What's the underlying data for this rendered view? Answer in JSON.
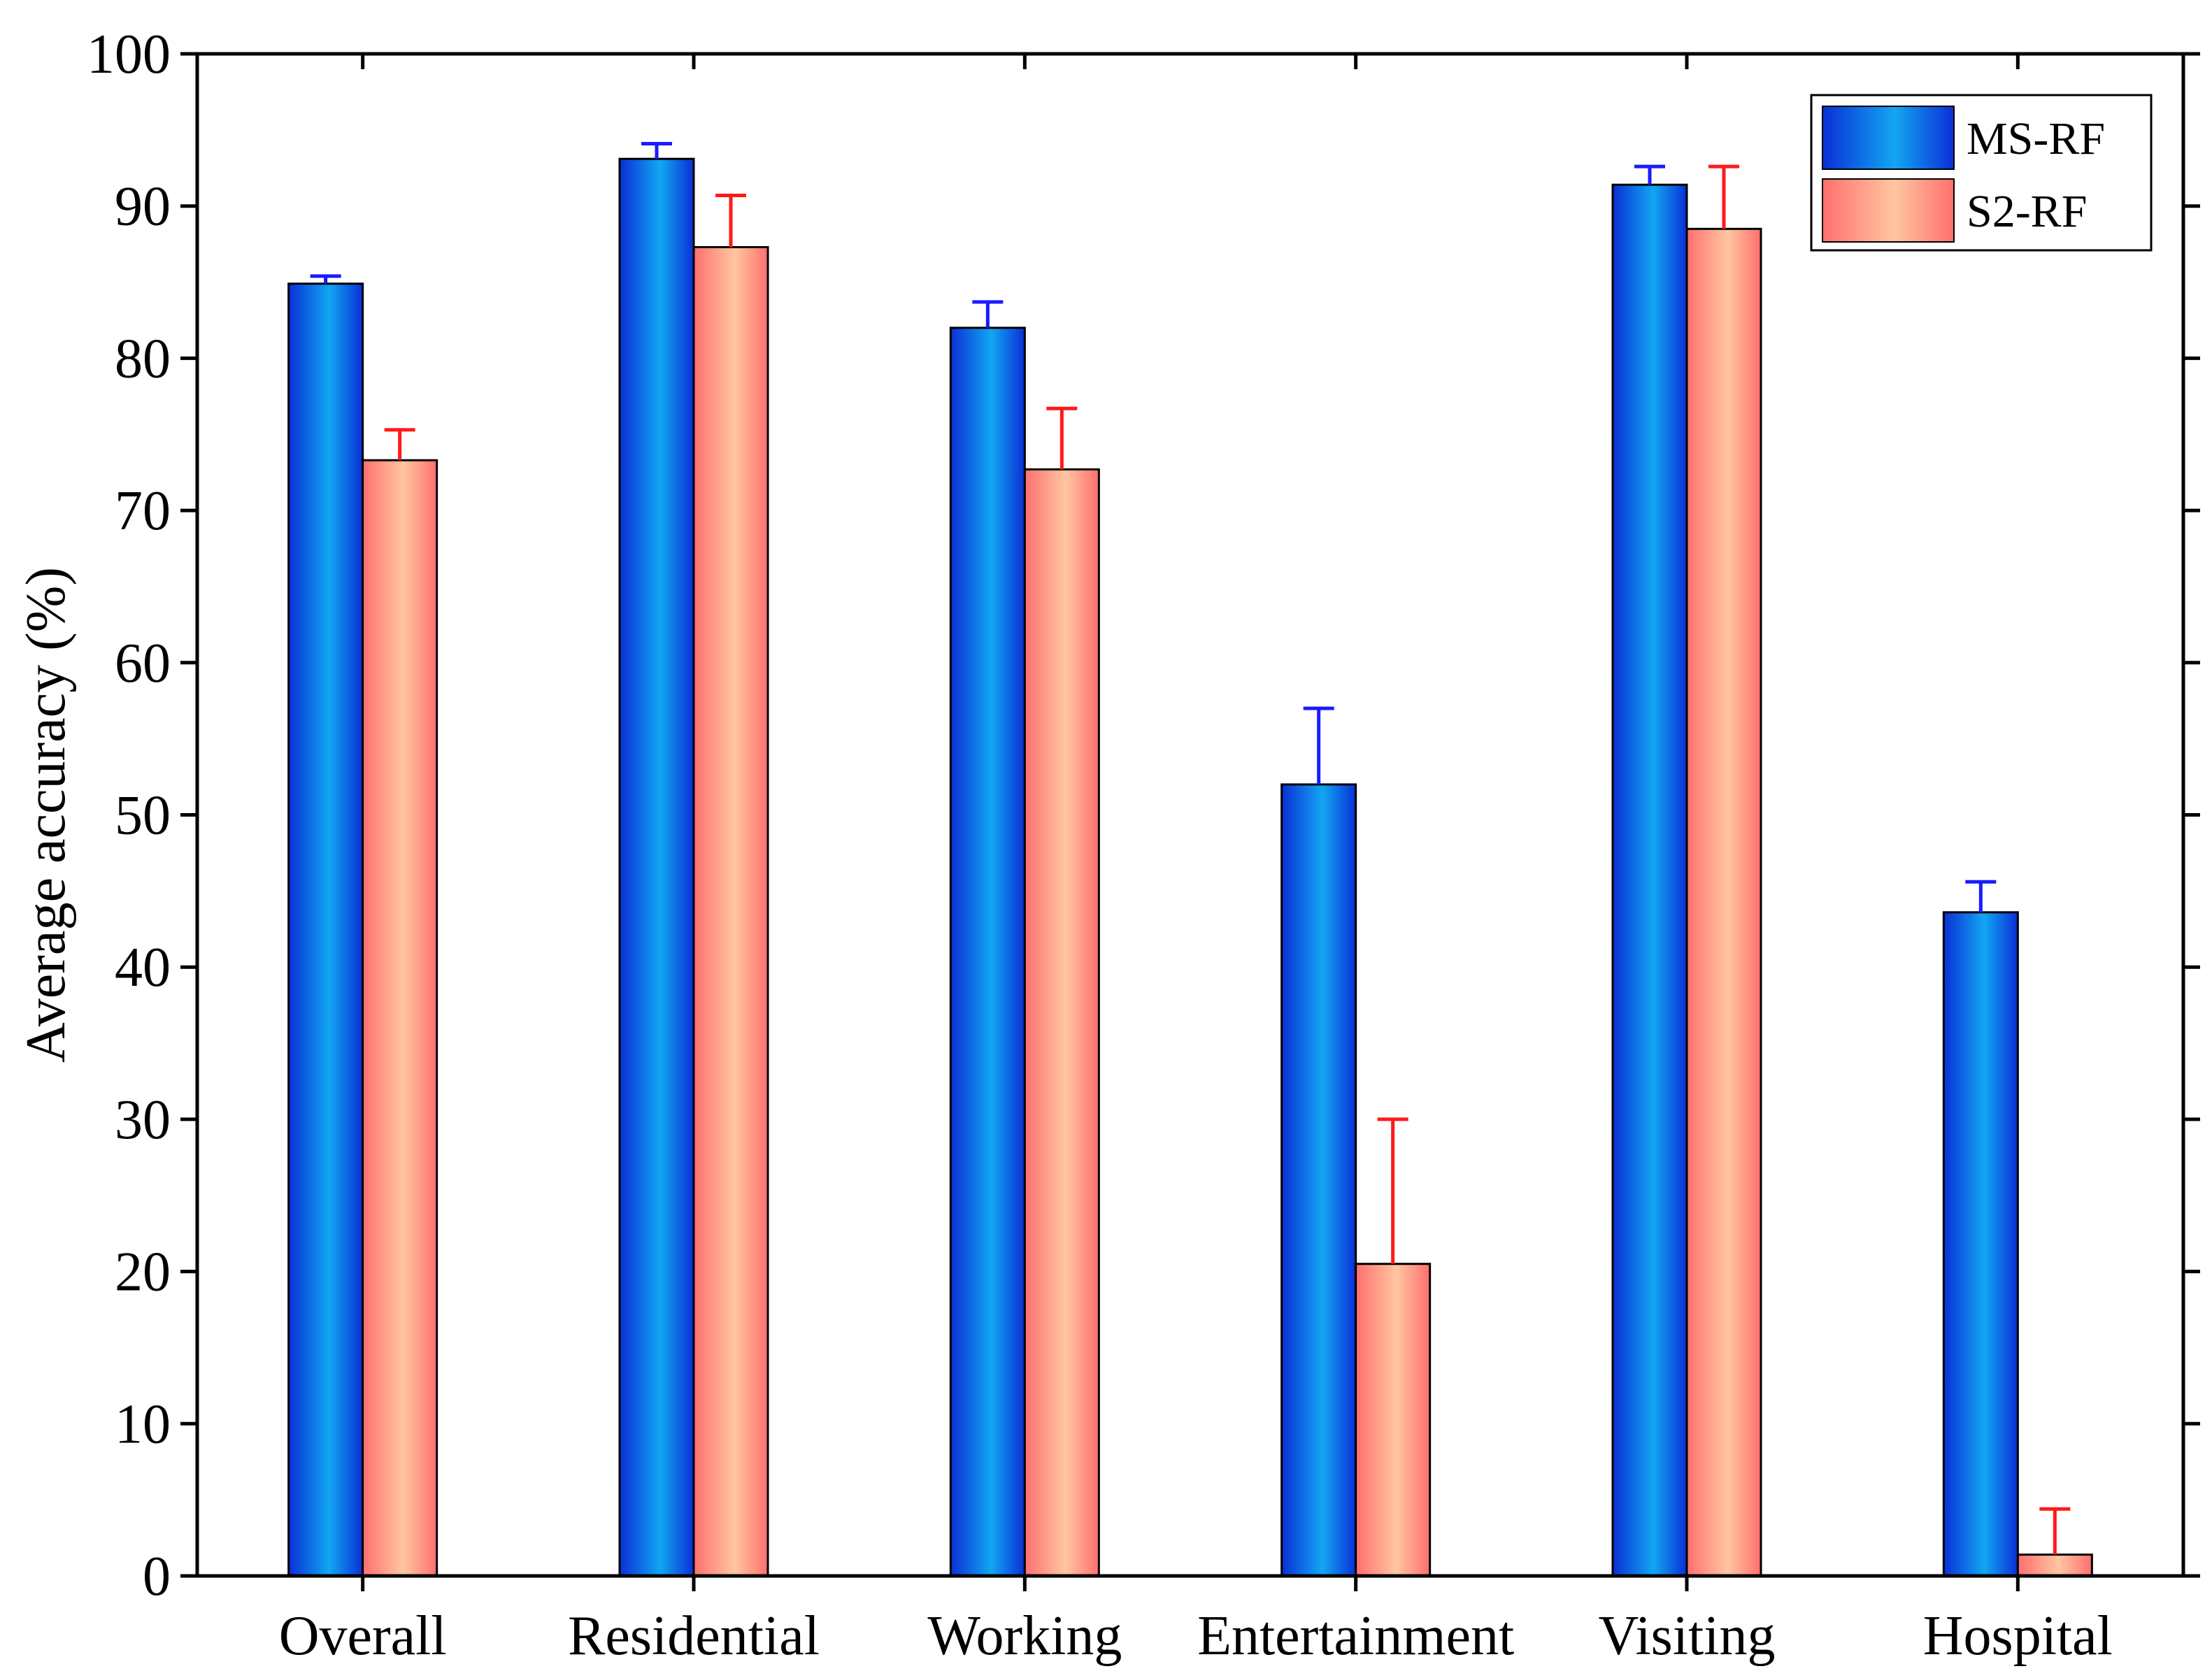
{
  "colors": {
    "ms_rf_dark": "#0a2fd6",
    "ms_rf_light": "#12a6f2",
    "s2_rf_dark": "#ff6f6f",
    "s2_rf_light": "#ffc6a0",
    "ms_rf_error": "#1a1aff",
    "s2_rf_error": "#ff1a1a",
    "axis": "#000000"
  },
  "chart_data": {
    "type": "bar",
    "title": "",
    "xlabel": "",
    "ylabel": "Average accuracy (%)",
    "ylim": [
      0,
      100
    ],
    "yticks": [
      0,
      10,
      20,
      30,
      40,
      50,
      60,
      70,
      80,
      90,
      100
    ],
    "ytick_labels": [
      "0",
      "10",
      "20",
      "30",
      "40",
      "50",
      "60",
      "70",
      "80",
      "90",
      "100"
    ],
    "categories": [
      "Overall",
      "Residential",
      "Working",
      "Entertainment",
      "Visiting",
      "Hospital"
    ],
    "legend_position": "top-right",
    "series": [
      {
        "name": "MS-RF",
        "values": [
          84.9,
          93.1,
          82.0,
          52.0,
          91.4,
          43.6
        ],
        "errors": [
          0.5,
          1.0,
          1.7,
          5.0,
          1.2,
          2.0
        ]
      },
      {
        "name": "S2-RF",
        "values": [
          73.3,
          87.3,
          72.7,
          20.5,
          88.5,
          1.4
        ],
        "errors": [
          2.0,
          3.4,
          4.0,
          9.5,
          4.1,
          3.0
        ]
      }
    ]
  }
}
